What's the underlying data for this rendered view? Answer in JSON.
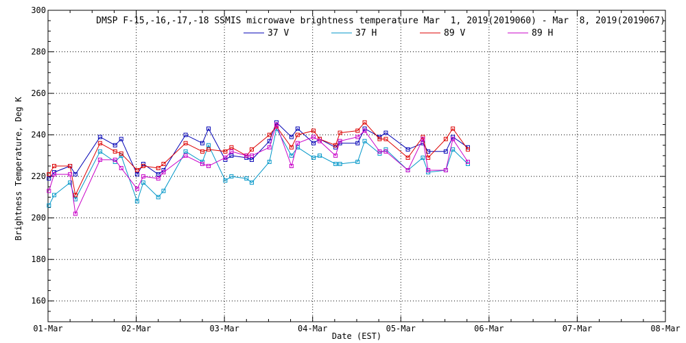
{
  "chart_data": {
    "type": "line",
    "title": "DMSP F-15,-16,-17,-18 SSMIS microwave brightness temperature Mar  1, 2019(2019060) - Mar  8, 2019(2019067)",
    "xlabel": "Date (EST)",
    "ylabel": "Brightness Temperature, Deg K",
    "xlim": [
      0,
      7
    ],
    "ylim": [
      150,
      300
    ],
    "yticks": [
      160,
      180,
      200,
      220,
      240,
      260,
      280,
      300
    ],
    "xtick_labels": [
      "01-Mar",
      "02-Mar",
      "03-Mar",
      "04-Mar",
      "05-Mar",
      "06-Mar",
      "07-Mar",
      "08-Mar"
    ],
    "legend_position": "top",
    "grid": true,
    "series": [
      {
        "name": "37 V",
        "color": "#0000b4",
        "points": [
          [
            0.01,
            219
          ],
          [
            0.07,
            222
          ],
          [
            0.25,
            225
          ],
          [
            0.31,
            221
          ],
          [
            0.59,
            239
          ],
          [
            0.76,
            235
          ],
          [
            0.83,
            238
          ],
          [
            1.01,
            221
          ],
          [
            1.08,
            226
          ],
          [
            1.25,
            221
          ],
          [
            1.31,
            223
          ],
          [
            1.56,
            240
          ],
          [
            1.75,
            236
          ],
          [
            1.82,
            243
          ],
          [
            2.01,
            228
          ],
          [
            2.08,
            230
          ],
          [
            2.25,
            229
          ],
          [
            2.31,
            228
          ],
          [
            2.51,
            237
          ],
          [
            2.59,
            246
          ],
          [
            2.76,
            239
          ],
          [
            2.83,
            243
          ],
          [
            3.01,
            236
          ],
          [
            3.08,
            238
          ],
          [
            3.26,
            234
          ],
          [
            3.31,
            236
          ],
          [
            3.51,
            236
          ],
          [
            3.59,
            243
          ],
          [
            3.76,
            239
          ],
          [
            3.83,
            241
          ],
          [
            4.08,
            233
          ],
          [
            4.25,
            236
          ],
          [
            4.31,
            232
          ],
          [
            4.51,
            232
          ],
          [
            4.59,
            239
          ],
          [
            4.76,
            234
          ]
        ]
      },
      {
        "name": "37 H",
        "color": "#0096c8",
        "points": [
          [
            0.01,
            206
          ],
          [
            0.07,
            211
          ],
          [
            0.25,
            217
          ],
          [
            0.31,
            209
          ],
          [
            0.59,
            232
          ],
          [
            0.76,
            227
          ],
          [
            0.83,
            230
          ],
          [
            1.01,
            208
          ],
          [
            1.08,
            217
          ],
          [
            1.25,
            210
          ],
          [
            1.31,
            213
          ],
          [
            1.56,
            232
          ],
          [
            1.75,
            227
          ],
          [
            1.82,
            235
          ],
          [
            2.01,
            218
          ],
          [
            2.08,
            220
          ],
          [
            2.25,
            219
          ],
          [
            2.31,
            217
          ],
          [
            2.51,
            227
          ],
          [
            2.59,
            243
          ],
          [
            2.76,
            230
          ],
          [
            2.83,
            234
          ],
          [
            3.01,
            229
          ],
          [
            3.08,
            230
          ],
          [
            3.26,
            226
          ],
          [
            3.31,
            226
          ],
          [
            3.51,
            227
          ],
          [
            3.59,
            237
          ],
          [
            3.76,
            231
          ],
          [
            3.83,
            233
          ],
          [
            4.08,
            223
          ],
          [
            4.25,
            229
          ],
          [
            4.31,
            222
          ],
          [
            4.51,
            223
          ],
          [
            4.59,
            233
          ],
          [
            4.76,
            226
          ]
        ]
      },
      {
        "name": "89 V",
        "color": "#dc0000",
        "points": [
          [
            0.01,
            221
          ],
          [
            0.07,
            225
          ],
          [
            0.25,
            225
          ],
          [
            0.31,
            211
          ],
          [
            0.59,
            236
          ],
          [
            0.76,
            232
          ],
          [
            0.83,
            231
          ],
          [
            1.01,
            223
          ],
          [
            1.08,
            225
          ],
          [
            1.25,
            224
          ],
          [
            1.31,
            226
          ],
          [
            1.56,
            236
          ],
          [
            1.75,
            232
          ],
          [
            1.82,
            233
          ],
          [
            2.01,
            232
          ],
          [
            2.08,
            234
          ],
          [
            2.25,
            230
          ],
          [
            2.31,
            233
          ],
          [
            2.51,
            240
          ],
          [
            2.59,
            244
          ],
          [
            2.76,
            234
          ],
          [
            2.83,
            240
          ],
          [
            3.01,
            242
          ],
          [
            3.08,
            238
          ],
          [
            3.26,
            235
          ],
          [
            3.31,
            241
          ],
          [
            3.51,
            242
          ],
          [
            3.59,
            246
          ],
          [
            3.76,
            238
          ],
          [
            3.83,
            238
          ],
          [
            4.08,
            229
          ],
          [
            4.25,
            239
          ],
          [
            4.31,
            229
          ],
          [
            4.51,
            238
          ],
          [
            4.59,
            243
          ],
          [
            4.76,
            233
          ]
        ]
      },
      {
        "name": "89 H",
        "color": "#c800c8",
        "points": [
          [
            0.01,
            213
          ],
          [
            0.07,
            221
          ],
          [
            0.25,
            221
          ],
          [
            0.31,
            202
          ],
          [
            0.59,
            228
          ],
          [
            0.76,
            228
          ],
          [
            0.83,
            224
          ],
          [
            1.01,
            214
          ],
          [
            1.08,
            220
          ],
          [
            1.25,
            219
          ],
          [
            1.31,
            222
          ],
          [
            1.56,
            230
          ],
          [
            1.75,
            226
          ],
          [
            1.82,
            225
          ],
          [
            2.01,
            229
          ],
          [
            2.08,
            232
          ],
          [
            2.25,
            230
          ],
          [
            2.31,
            230
          ],
          [
            2.51,
            234
          ],
          [
            2.59,
            245
          ],
          [
            2.76,
            225
          ],
          [
            2.83,
            236
          ],
          [
            3.01,
            239
          ],
          [
            3.08,
            237
          ],
          [
            3.26,
            230
          ],
          [
            3.31,
            237
          ],
          [
            3.51,
            239
          ],
          [
            3.59,
            242
          ],
          [
            3.76,
            232
          ],
          [
            3.83,
            232
          ],
          [
            4.08,
            223
          ],
          [
            4.25,
            238
          ],
          [
            4.31,
            223
          ],
          [
            4.51,
            223
          ],
          [
            4.59,
            238
          ],
          [
            4.76,
            227
          ]
        ]
      }
    ]
  }
}
